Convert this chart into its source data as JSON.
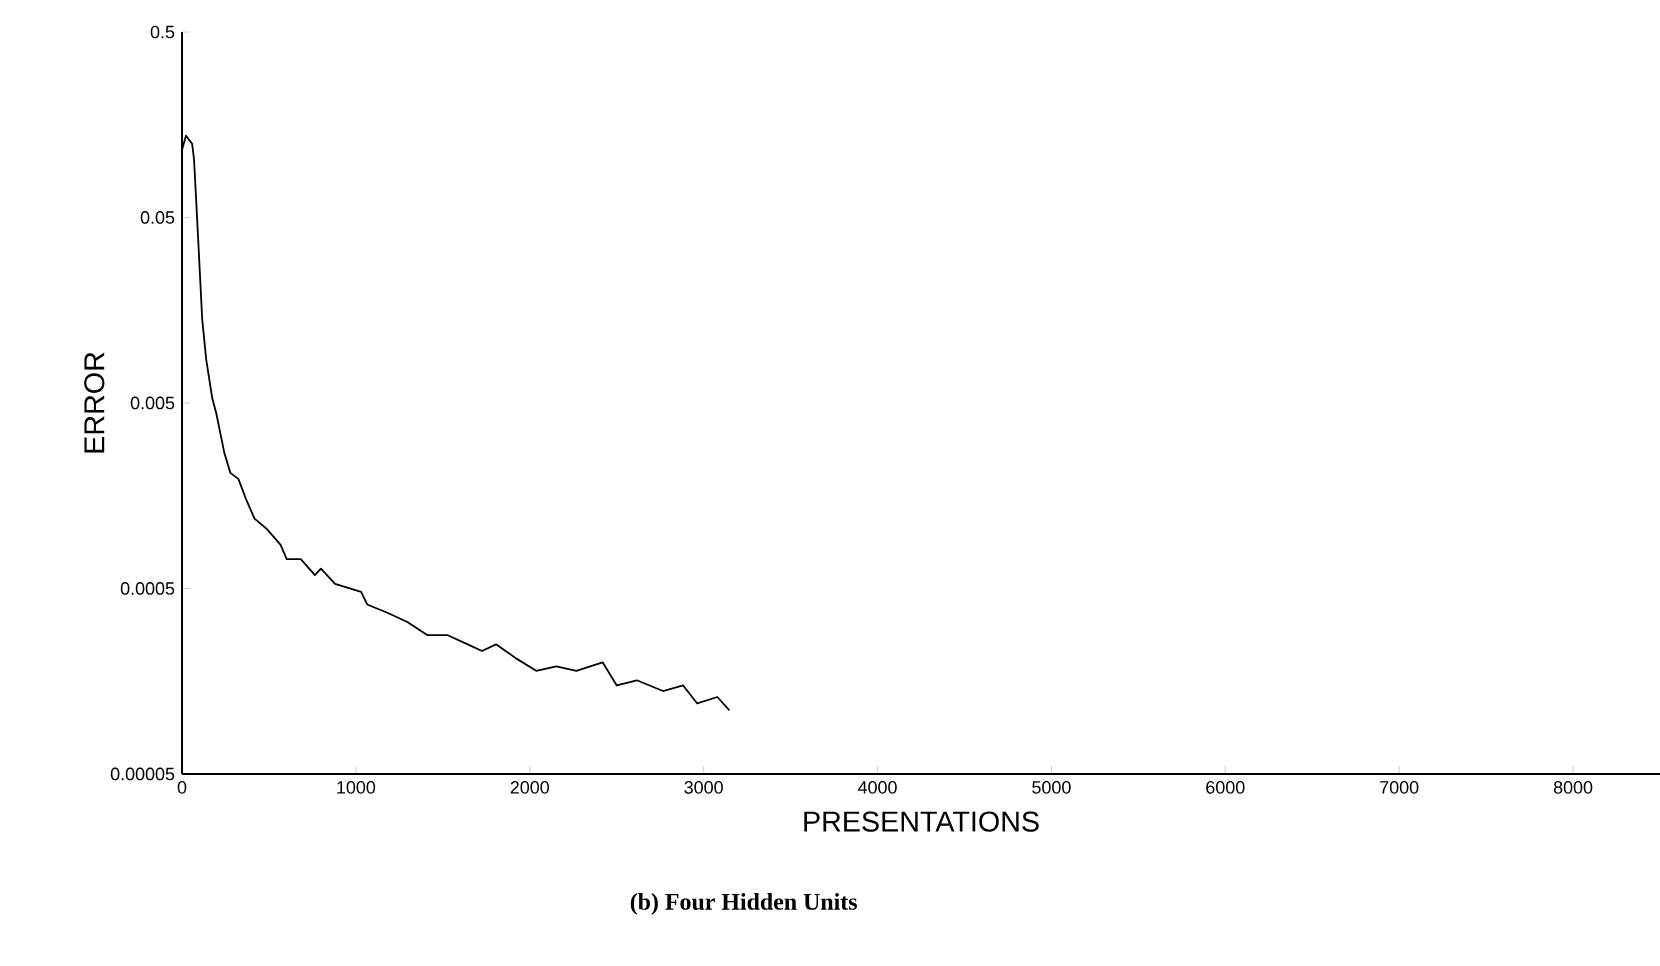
{
  "chart_data": {
    "type": "line",
    "title": "(b) Four Hidden Units",
    "xlabel": "PRESENTATIONS",
    "ylabel": "ERROR",
    "log": "y",
    "xlim": [
      0,
      8500
    ],
    "ylim": [
      5e-05,
      0.5
    ],
    "xticks": [
      0,
      1000,
      2000,
      3000,
      4000,
      5000,
      6000,
      7000,
      8000
    ],
    "yticks": [
      {
        "value": 5e-05,
        "label": "0.00005"
      },
      {
        "value": 0.0005,
        "label": "0.0005"
      },
      {
        "value": 0.005,
        "label": "0.005"
      },
      {
        "value": 0.05,
        "label": "0.05"
      },
      {
        "value": 0.5,
        "label": "0.5"
      }
    ],
    "grid": false,
    "marker": "none",
    "line_style": "solid",
    "series": [
      {
        "color": "#000000",
        "x": [
          0,
          23,
          58,
          69,
          81,
          93,
          116,
          139,
          174,
          197,
          243,
          278,
          324,
          370,
          417,
          486,
          567,
          602,
          683,
          764,
          799,
          880,
          1030,
          1065,
          1181,
          1296,
          1412,
          1528,
          1643,
          1725,
          1806,
          1921,
          2037,
          2153,
          2268,
          2419,
          2500,
          2616,
          2766,
          2882,
          2963,
          3079,
          3148
        ],
        "values": [
          0.116,
          0.138,
          0.125,
          0.103,
          0.063,
          0.038,
          0.0142,
          0.0086,
          0.0053,
          0.0044,
          0.0027,
          0.0021,
          0.00195,
          0.0015,
          0.00119,
          0.00105,
          0.00086,
          0.00072,
          0.00072,
          0.00059,
          0.00064,
          0.00053,
          0.00048,
          0.00041,
          0.00037,
          0.00033,
          0.00028,
          0.00028,
          0.00025,
          0.00023,
          0.00025,
          0.00021,
          0.00018,
          0.00019,
          0.00018,
          0.0002,
          0.00015,
          0.00016,
          0.00014,
          0.00015,
          0.00012,
          0.00013,
          0.00011
        ]
      }
    ]
  }
}
